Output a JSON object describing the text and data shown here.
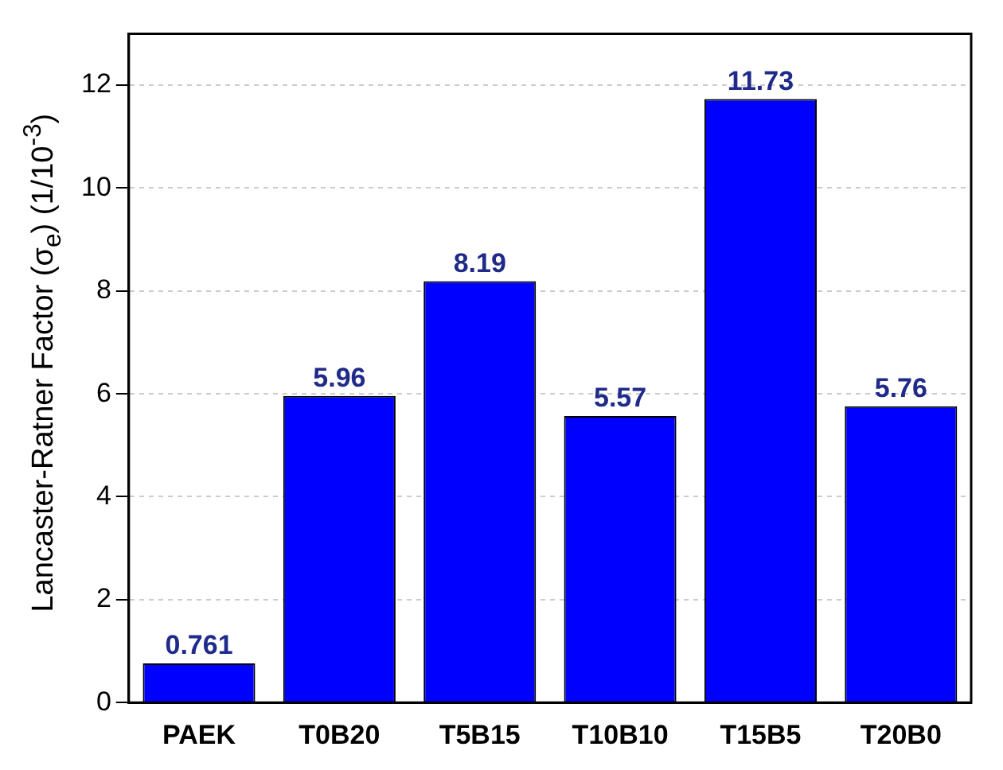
{
  "chart_data": {
    "type": "bar",
    "ylabel": "Lancaster-Ratner Factor (σ$_{e}$) (1/10$^{-3}$)",
    "categories": [
      "PAEK",
      "T0B20",
      "T5B15",
      "T10B10",
      "T15B5",
      "T20B0"
    ],
    "values": [
      0.761,
      5.96,
      8.19,
      5.57,
      11.73,
      5.76
    ],
    "color": "#0000ff",
    "ylim": [
      0,
      13
    ],
    "yticks": [
      0,
      2,
      4,
      6,
      8,
      10,
      12
    ],
    "grid": "y",
    "data_labels": true,
    "legend": false
  }
}
